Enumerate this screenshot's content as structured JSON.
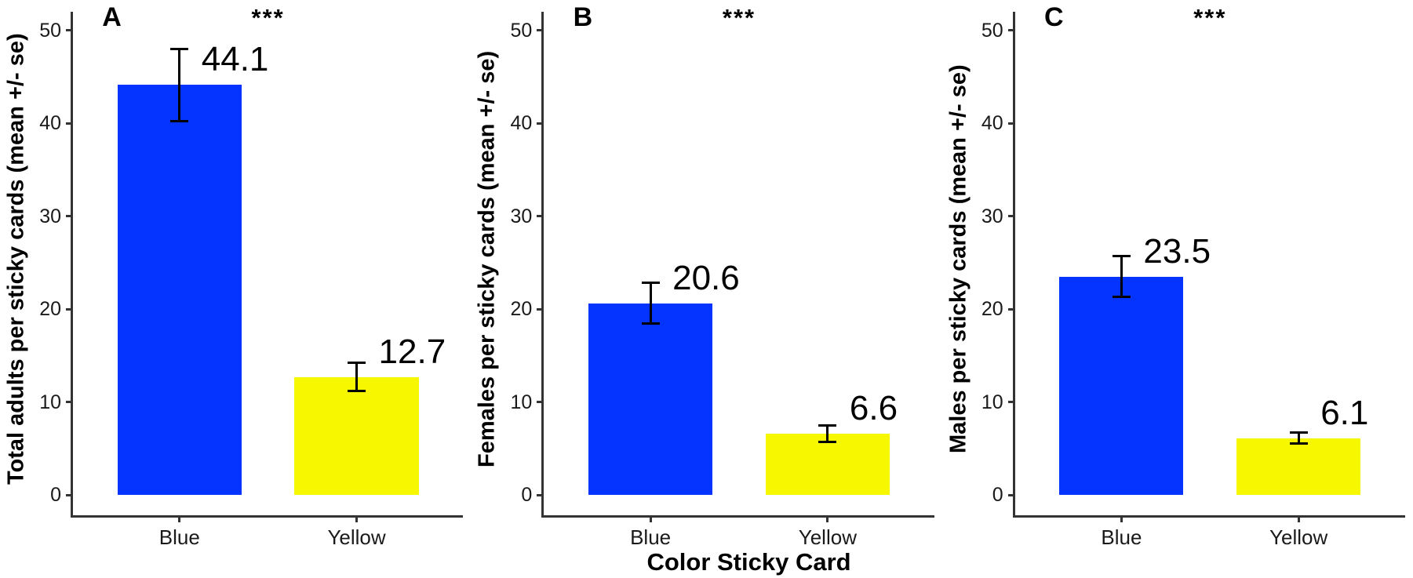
{
  "figure": {
    "xlabel": "Color Sticky Card",
    "background": "#FFFFFF",
    "axis_color": "#333333",
    "tick_text_color": "#1A1A1A",
    "error_bar_color": "#000000"
  },
  "chart_data": [
    {
      "type": "bar",
      "panel_label": "A",
      "significance": "***",
      "ylabel": "Total adults per sticky cards (mean +/- se)",
      "categories": [
        "Blue",
        "Yellow"
      ],
      "values": [
        44.1,
        12.7
      ],
      "se": [
        3.9,
        1.5
      ],
      "value_labels": [
        "44.1",
        "12.7"
      ],
      "bar_colors": [
        "#0533FF",
        "#F7F700"
      ],
      "yticks": [
        0,
        10,
        20,
        30,
        40,
        50
      ],
      "ylim": [
        0,
        52
      ],
      "grid": false,
      "legend": "none"
    },
    {
      "type": "bar",
      "panel_label": "B",
      "significance": "***",
      "ylabel": "Females per sticky cards (mean +/- se)",
      "categories": [
        "Blue",
        "Yellow"
      ],
      "values": [
        20.6,
        6.6
      ],
      "se": [
        2.2,
        0.9
      ],
      "value_labels": [
        "20.6",
        "6.6"
      ],
      "bar_colors": [
        "#0533FF",
        "#F7F700"
      ],
      "yticks": [
        0,
        10,
        20,
        30,
        40,
        50
      ],
      "ylim": [
        0,
        52
      ],
      "grid": false,
      "legend": "none"
    },
    {
      "type": "bar",
      "panel_label": "C",
      "significance": "***",
      "ylabel": "Males per sticky cards (mean +/- se)",
      "categories": [
        "Blue",
        "Yellow"
      ],
      "values": [
        23.5,
        6.1
      ],
      "se": [
        2.2,
        0.6
      ],
      "value_labels": [
        "23.5",
        "6.1"
      ],
      "bar_colors": [
        "#0533FF",
        "#F7F700"
      ],
      "yticks": [
        0,
        10,
        20,
        30,
        40,
        50
      ],
      "ylim": [
        0,
        52
      ],
      "grid": false,
      "legend": "none"
    }
  ]
}
